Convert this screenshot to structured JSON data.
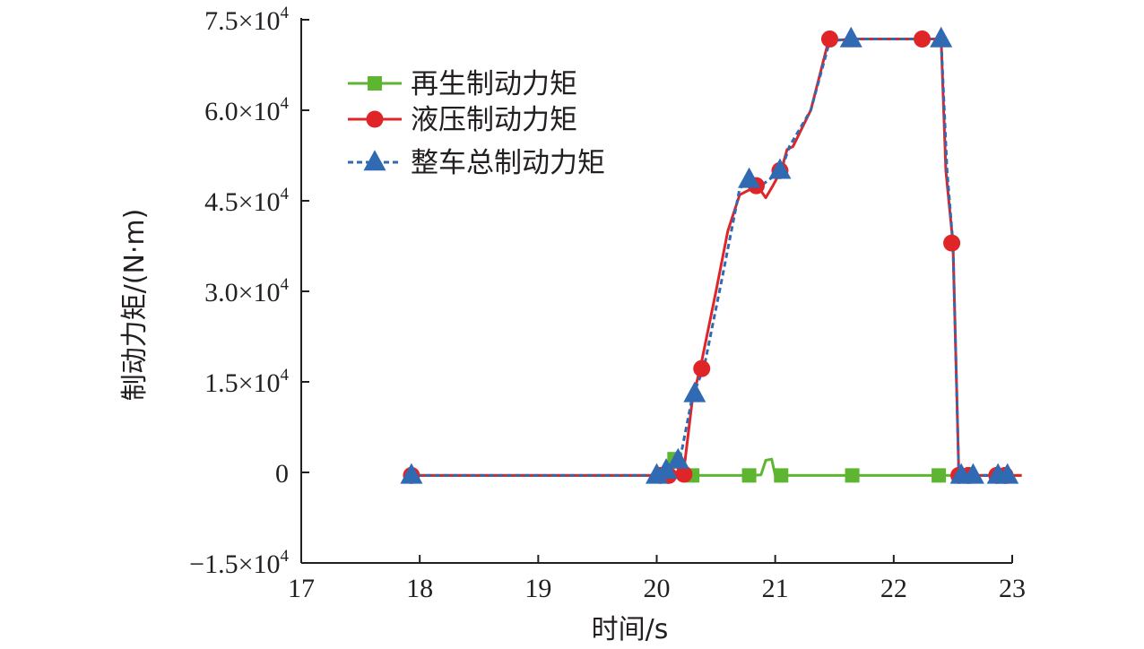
{
  "chart_data": {
    "type": "line",
    "xlabel": "时间/s",
    "ylabel": "制动力矩/(N·m)",
    "xlim": [
      17,
      23
    ],
    "ylim": [
      -15000,
      75000
    ],
    "x_ticks": [
      "17",
      "18",
      "19",
      "20",
      "21",
      "22",
      "23"
    ],
    "y_ticks": [
      {
        "value": -15000,
        "mantissa": "−1.5×10",
        "exp": "4"
      },
      {
        "value": 0,
        "mantissa": "0",
        "exp": ""
      },
      {
        "value": 15000,
        "mantissa": "1.5×10",
        "exp": "4"
      },
      {
        "value": 30000,
        "mantissa": "3.0×10",
        "exp": "4"
      },
      {
        "value": 45000,
        "mantissa": "4.5×10",
        "exp": "4"
      },
      {
        "value": 60000,
        "mantissa": "6.0×10",
        "exp": "4"
      },
      {
        "value": 75000,
        "mantissa": "7.5×10",
        "exp": "4"
      }
    ],
    "grid": false,
    "legend_position": "top-left",
    "series": [
      {
        "name": "再生制动力矩",
        "color": "#5db531",
        "marker": "square",
        "dash": "solid",
        "points": [
          [
            17.9,
            -500
          ],
          [
            20.0,
            -500
          ],
          [
            20.1,
            300
          ],
          [
            20.15,
            2500
          ],
          [
            20.2,
            -500
          ],
          [
            20.3,
            -500
          ],
          [
            20.8,
            -500
          ],
          [
            20.88,
            -400
          ],
          [
            20.92,
            2000
          ],
          [
            20.97,
            2200
          ],
          [
            21.0,
            -500
          ],
          [
            21.05,
            -500
          ],
          [
            21.5,
            -500
          ],
          [
            21.65,
            -500
          ],
          [
            22.0,
            -500
          ],
          [
            22.4,
            -500
          ],
          [
            22.5,
            -500
          ],
          [
            22.65,
            -500
          ],
          [
            22.9,
            -500
          ],
          [
            23.08,
            -500
          ]
        ],
        "markers": [
          [
            20.15,
            2200
          ],
          [
            20.3,
            -500
          ],
          [
            20.78,
            -500
          ],
          [
            21.05,
            -500
          ],
          [
            21.65,
            -500
          ],
          [
            22.38,
            -500
          ],
          [
            22.6,
            -500
          ]
        ]
      },
      {
        "name": "液压制动力矩",
        "color": "#e02528",
        "marker": "circle",
        "dash": "solid",
        "points": [
          [
            17.9,
            -500
          ],
          [
            20.0,
            -500
          ],
          [
            20.08,
            -500
          ],
          [
            20.14,
            -500
          ],
          [
            20.23,
            500
          ],
          [
            20.3,
            12000
          ],
          [
            20.37,
            17500
          ],
          [
            20.5,
            30000
          ],
          [
            20.6,
            40000
          ],
          [
            20.7,
            46000
          ],
          [
            20.85,
            47500
          ],
          [
            20.92,
            45500
          ],
          [
            20.98,
            47500
          ],
          [
            21.05,
            50000
          ],
          [
            21.1,
            53500
          ],
          [
            21.15,
            54000
          ],
          [
            21.3,
            60000
          ],
          [
            21.45,
            71500
          ],
          [
            21.65,
            71800
          ],
          [
            22.0,
            71800
          ],
          [
            22.22,
            71800
          ],
          [
            22.4,
            71800
          ],
          [
            22.44,
            50000
          ],
          [
            22.5,
            38000
          ],
          [
            22.55,
            -500
          ],
          [
            22.7,
            -500
          ],
          [
            22.9,
            -500
          ],
          [
            23.08,
            -500
          ]
        ],
        "markers": [
          [
            17.93,
            -500
          ],
          [
            20.03,
            -500
          ],
          [
            20.1,
            -500
          ],
          [
            20.23,
            -300
          ],
          [
            20.38,
            17200
          ],
          [
            20.84,
            47500
          ],
          [
            21.04,
            50000
          ],
          [
            21.46,
            71800
          ],
          [
            22.24,
            71800
          ],
          [
            22.49,
            38000
          ],
          [
            22.55,
            -500
          ],
          [
            22.63,
            -500
          ],
          [
            22.87,
            -500
          ],
          [
            22.94,
            -500
          ]
        ]
      },
      {
        "name": "整车总制动力矩",
        "color": "#2f6ab3",
        "marker": "triangle",
        "dash": "dashed",
        "points": [
          [
            17.9,
            -500
          ],
          [
            20.0,
            -500
          ],
          [
            20.1,
            500
          ],
          [
            20.2,
            2500
          ],
          [
            20.3,
            12500
          ],
          [
            20.4,
            17500
          ],
          [
            20.55,
            32000
          ],
          [
            20.7,
            47000
          ],
          [
            20.78,
            48500
          ],
          [
            20.88,
            47500
          ],
          [
            21.05,
            50000
          ],
          [
            21.12,
            54000
          ],
          [
            21.3,
            60000
          ],
          [
            21.46,
            71500
          ],
          [
            21.65,
            71800
          ],
          [
            22.4,
            71800
          ],
          [
            22.45,
            50000
          ],
          [
            22.5,
            38000
          ],
          [
            22.55,
            -500
          ],
          [
            22.7,
            -500
          ],
          [
            22.9,
            -500
          ],
          [
            23.0,
            -500
          ]
        ],
        "markers": [
          [
            17.93,
            -500
          ],
          [
            20.0,
            -500
          ],
          [
            20.08,
            300
          ],
          [
            20.18,
            2000
          ],
          [
            20.32,
            13000
          ],
          [
            20.78,
            48500
          ],
          [
            21.04,
            50000
          ],
          [
            21.64,
            71800
          ],
          [
            22.4,
            71800
          ],
          [
            22.57,
            -500
          ],
          [
            22.67,
            -500
          ],
          [
            22.88,
            -500
          ],
          [
            22.96,
            -500
          ]
        ]
      }
    ]
  }
}
